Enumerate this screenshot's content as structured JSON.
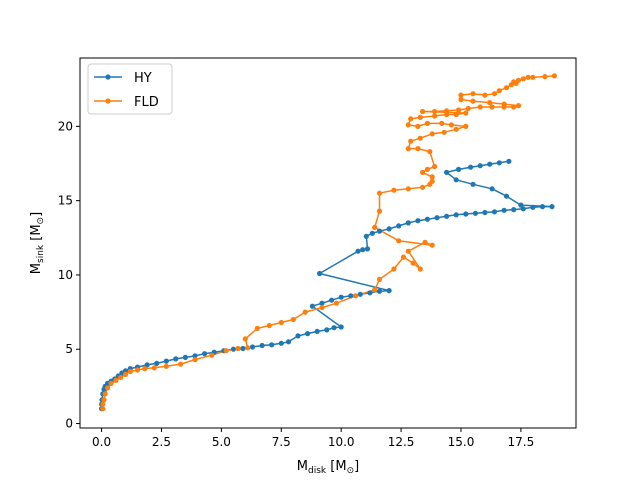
{
  "chart_data": {
    "type": "line",
    "title": "",
    "xlabel": {
      "main": "M",
      "sub": "disk",
      "unit_open": " [M",
      "unit_sub": "⊙",
      "unit_close": "]"
    },
    "ylabel": {
      "main": "M",
      "sub": "sink",
      "unit_open": " [M",
      "unit_sub": "⊙",
      "unit_close": "]"
    },
    "xlim": [
      -0.9,
      19.8
    ],
    "ylim": [
      -0.3,
      24.6
    ],
    "xticks": [
      0.0,
      2.5,
      5.0,
      7.5,
      10.0,
      12.5,
      15.0,
      17.5
    ],
    "xtick_labels": [
      "0.0",
      "2.5",
      "5.0",
      "7.5",
      "10.0",
      "12.5",
      "15.0",
      "17.5"
    ],
    "yticks": [
      0,
      5,
      10,
      15,
      20
    ],
    "ytick_labels": [
      "0",
      "5",
      "10",
      "15",
      "20"
    ],
    "grid": false,
    "legend": "top-left",
    "series": [
      {
        "name": "HY",
        "color": "#1f77b4",
        "marker": "dot",
        "points": [
          [
            0.0,
            1.0
          ],
          [
            0.0,
            1.3
          ],
          [
            0.02,
            1.6
          ],
          [
            0.05,
            2.0
          ],
          [
            0.1,
            2.3
          ],
          [
            0.15,
            2.5
          ],
          [
            0.25,
            2.7
          ],
          [
            0.4,
            2.85
          ],
          [
            0.55,
            3.0
          ],
          [
            0.7,
            3.2
          ],
          [
            0.85,
            3.4
          ],
          [
            1.0,
            3.55
          ],
          [
            1.2,
            3.7
          ],
          [
            1.5,
            3.8
          ],
          [
            1.9,
            3.95
          ],
          [
            2.3,
            4.05
          ],
          [
            2.7,
            4.2
          ],
          [
            3.1,
            4.35
          ],
          [
            3.5,
            4.45
          ],
          [
            3.9,
            4.55
          ],
          [
            4.3,
            4.7
          ],
          [
            4.7,
            4.8
          ],
          [
            5.1,
            4.9
          ],
          [
            5.5,
            5.0
          ],
          [
            5.9,
            5.05
          ],
          [
            6.3,
            5.15
          ],
          [
            6.7,
            5.25
          ],
          [
            7.1,
            5.3
          ],
          [
            7.5,
            5.4
          ],
          [
            7.8,
            5.5
          ],
          [
            8.2,
            5.9
          ],
          [
            8.6,
            6.05
          ],
          [
            9.0,
            6.2
          ],
          [
            9.4,
            6.3
          ],
          [
            9.7,
            6.45
          ],
          [
            10.0,
            6.5
          ],
          [
            8.8,
            7.9
          ],
          [
            9.2,
            8.1
          ],
          [
            9.6,
            8.3
          ],
          [
            10.0,
            8.5
          ],
          [
            10.4,
            8.6
          ],
          [
            10.8,
            8.7
          ],
          [
            11.2,
            8.8
          ],
          [
            11.6,
            8.9
          ],
          [
            12.0,
            8.95
          ],
          [
            9.1,
            10.1
          ],
          [
            10.7,
            11.6
          ],
          [
            10.9,
            11.7
          ],
          [
            11.1,
            11.75
          ],
          [
            11.05,
            12.6
          ],
          [
            11.3,
            12.8
          ],
          [
            11.6,
            12.95
          ],
          [
            12.0,
            13.1
          ],
          [
            12.4,
            13.3
          ],
          [
            12.8,
            13.5
          ],
          [
            13.2,
            13.65
          ],
          [
            13.6,
            13.75
          ],
          [
            14.0,
            13.85
          ],
          [
            14.4,
            13.95
          ],
          [
            14.8,
            14.05
          ],
          [
            15.2,
            14.1
          ],
          [
            15.6,
            14.15
          ],
          [
            16.0,
            14.2
          ],
          [
            16.4,
            14.25
          ],
          [
            16.8,
            14.35
          ],
          [
            17.2,
            14.4
          ],
          [
            17.6,
            14.45
          ],
          [
            18.0,
            14.55
          ],
          [
            18.4,
            14.6
          ],
          [
            18.8,
            14.6
          ],
          [
            17.5,
            14.7
          ],
          [
            16.9,
            15.3
          ],
          [
            16.3,
            15.8
          ],
          [
            15.5,
            16.1
          ],
          [
            14.8,
            16.4
          ],
          [
            14.4,
            16.9
          ],
          [
            14.9,
            17.1
          ],
          [
            15.4,
            17.25
          ],
          [
            15.8,
            17.35
          ],
          [
            16.2,
            17.45
          ],
          [
            16.6,
            17.55
          ],
          [
            17.0,
            17.65
          ]
        ]
      },
      {
        "name": "FLD",
        "color": "#ff7f0e",
        "marker": "dot",
        "points": [
          [
            0.05,
            1.0
          ],
          [
            0.05,
            1.3
          ],
          [
            0.1,
            1.6
          ],
          [
            0.15,
            2.0
          ],
          [
            0.25,
            2.4
          ],
          [
            0.4,
            2.7
          ],
          [
            0.6,
            2.9
          ],
          [
            0.8,
            3.1
          ],
          [
            1.0,
            3.3
          ],
          [
            1.2,
            3.5
          ],
          [
            1.5,
            3.6
          ],
          [
            1.8,
            3.7
          ],
          [
            2.2,
            3.75
          ],
          [
            2.7,
            3.85
          ],
          [
            3.3,
            4.0
          ],
          [
            3.9,
            4.3
          ],
          [
            4.6,
            4.6
          ],
          [
            5.2,
            4.9
          ],
          [
            5.7,
            5.05
          ],
          [
            6.1,
            5.1
          ],
          [
            6.0,
            5.7
          ],
          [
            6.5,
            6.4
          ],
          [
            7.0,
            6.6
          ],
          [
            7.5,
            6.8
          ],
          [
            8.0,
            7.0
          ],
          [
            8.5,
            7.5
          ],
          [
            9.2,
            7.8
          ],
          [
            9.8,
            8.1
          ],
          [
            10.6,
            8.6
          ],
          [
            11.4,
            9.0
          ],
          [
            11.6,
            9.7
          ],
          [
            12.2,
            10.4
          ],
          [
            12.6,
            11.2
          ],
          [
            13.0,
            10.8
          ],
          [
            13.3,
            10.4
          ],
          [
            12.8,
            11.6
          ],
          [
            13.5,
            12.2
          ],
          [
            13.8,
            12.0
          ],
          [
            12.4,
            12.3
          ],
          [
            11.4,
            13.2
          ],
          [
            11.6,
            14.3
          ],
          [
            11.6,
            15.5
          ],
          [
            12.2,
            15.7
          ],
          [
            12.8,
            15.8
          ],
          [
            13.4,
            15.9
          ],
          [
            13.7,
            16.1
          ],
          [
            13.8,
            16.3
          ],
          [
            13.8,
            16.6
          ],
          [
            13.4,
            16.9
          ],
          [
            13.6,
            17.1
          ],
          [
            13.9,
            17.3
          ],
          [
            13.7,
            18.3
          ],
          [
            13.2,
            18.5
          ],
          [
            12.8,
            18.5
          ],
          [
            12.9,
            19.0
          ],
          [
            13.3,
            19.2
          ],
          [
            13.8,
            19.5
          ],
          [
            14.3,
            19.6
          ],
          [
            14.8,
            19.8
          ],
          [
            15.2,
            20.0
          ],
          [
            14.6,
            20.1
          ],
          [
            14.2,
            20.2
          ],
          [
            13.6,
            20.2
          ],
          [
            13.2,
            20.0
          ],
          [
            12.8,
            20.1
          ],
          [
            12.9,
            20.5
          ],
          [
            13.3,
            20.6
          ],
          [
            13.9,
            20.7
          ],
          [
            14.4,
            20.8
          ],
          [
            14.8,
            20.8
          ],
          [
            15.2,
            20.9
          ],
          [
            13.4,
            21.0
          ],
          [
            13.9,
            21.0
          ],
          [
            14.4,
            21.05
          ],
          [
            14.9,
            21.1
          ],
          [
            15.3,
            21.2
          ],
          [
            15.8,
            21.3
          ],
          [
            16.3,
            21.3
          ],
          [
            16.8,
            21.3
          ],
          [
            17.2,
            21.3
          ],
          [
            17.4,
            21.4
          ],
          [
            16.8,
            21.5
          ],
          [
            16.2,
            21.6
          ],
          [
            15.5,
            21.7
          ],
          [
            15.0,
            21.8
          ],
          [
            15.0,
            22.1
          ],
          [
            15.5,
            22.2
          ],
          [
            16.0,
            22.1
          ],
          [
            16.4,
            22.2
          ],
          [
            16.6,
            22.4
          ],
          [
            16.9,
            22.6
          ],
          [
            17.1,
            22.8
          ],
          [
            17.3,
            22.9
          ],
          [
            17.2,
            23.0
          ],
          [
            17.4,
            23.1
          ],
          [
            17.6,
            23.2
          ],
          [
            17.8,
            23.3
          ],
          [
            18.0,
            23.3
          ],
          [
            18.5,
            23.35
          ],
          [
            18.9,
            23.4
          ]
        ]
      }
    ]
  }
}
